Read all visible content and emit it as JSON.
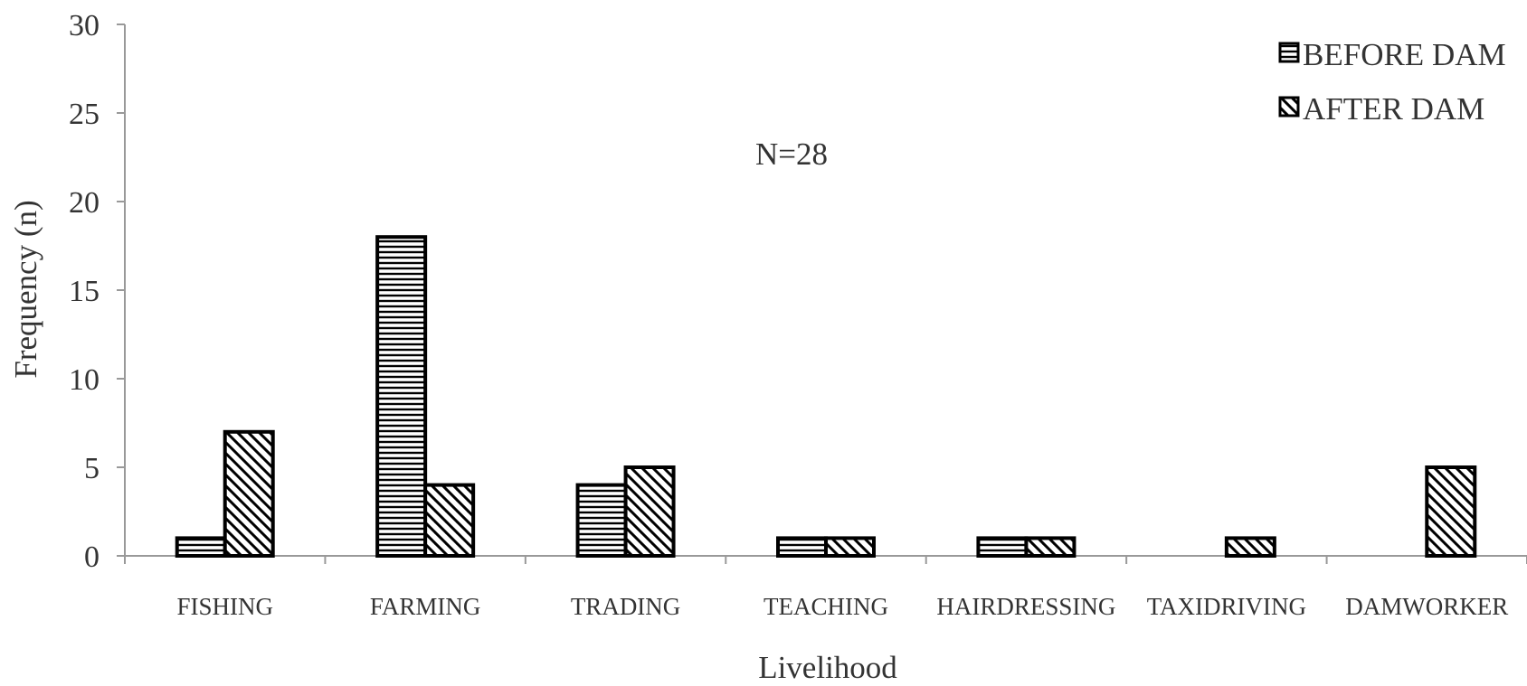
{
  "chart_data": {
    "type": "bar",
    "xlabel": "Livelihood",
    "ylabel": "Frequency (n)",
    "ylim": [
      0,
      30
    ],
    "yticks": [
      0,
      5,
      10,
      15,
      20,
      25,
      30
    ],
    "annotation": "N=28",
    "legend_position": "top-right",
    "grid": false,
    "categories": [
      "FISHING",
      "FARMING",
      "TRADING",
      "TEACHING",
      "HAIRDRESSING",
      "TAXIDRIVING",
      "DAMWORKER"
    ],
    "series": [
      {
        "name": "BEFORE DAM",
        "pattern": "horizontal-stripes",
        "values": [
          1,
          18,
          4,
          1,
          1,
          0,
          0
        ]
      },
      {
        "name": "AFTER DAM",
        "pattern": "diagonal-stripes",
        "values": [
          7,
          4,
          5,
          1,
          1,
          1,
          5
        ]
      }
    ],
    "colors": {
      "stroke": "#000000",
      "axis": "#999999",
      "text": "#333333",
      "fill": "#ffffff"
    }
  }
}
